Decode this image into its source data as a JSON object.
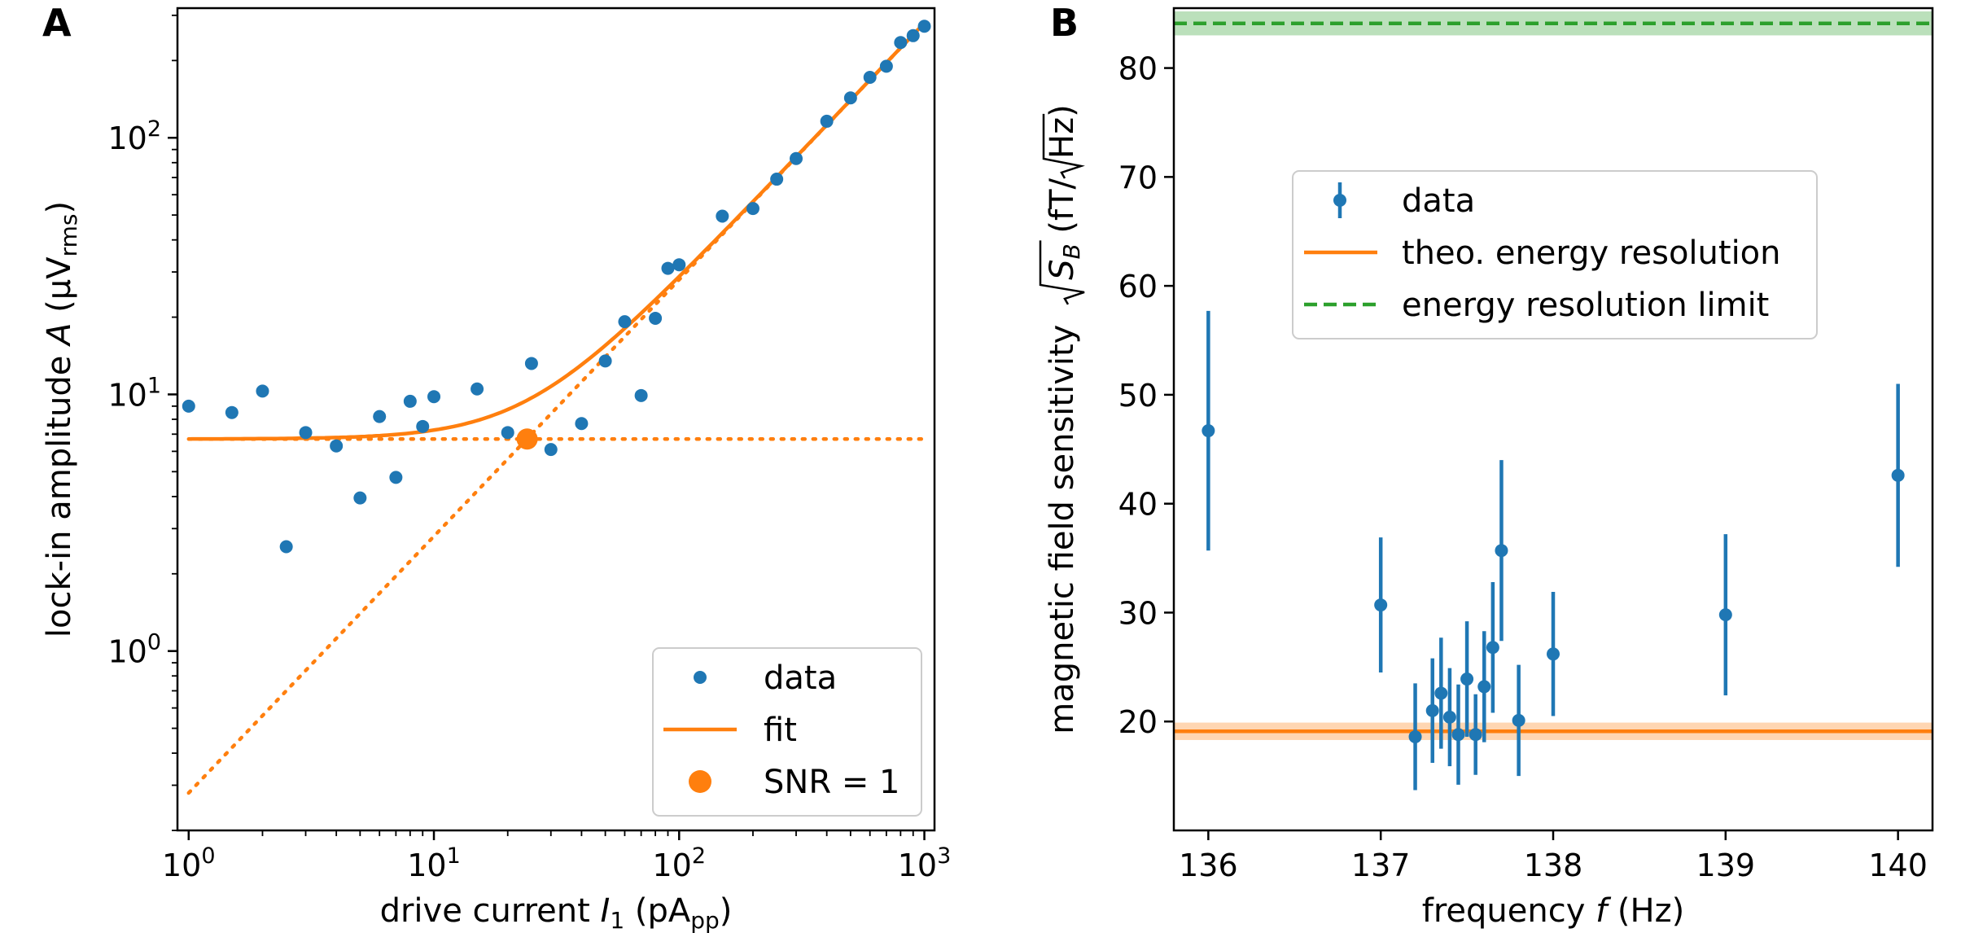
{
  "chart_data": [
    {
      "panel_label": "A",
      "type": "scatter",
      "xscale": "log",
      "yscale": "log",
      "xlim": [
        0.9,
        1100
      ],
      "ylim": [
        0.2,
        320
      ],
      "xlabel": {
        "main": "drive current ",
        "var": "I",
        "var_sub": "1",
        "unit_open": "  (pA",
        "unit_sub": "pp",
        "unit_close": ")"
      },
      "ylabel": {
        "main": "lock-in amplitude ",
        "var": "A",
        "unit_open": "  (μV",
        "unit_sub": "rms",
        "unit_close": ")"
      },
      "xticks": [
        {
          "value": 1,
          "base": "10",
          "exp": "0"
        },
        {
          "value": 10,
          "base": "10",
          "exp": "1"
        },
        {
          "value": 100,
          "base": "10",
          "exp": "2"
        },
        {
          "value": 1000,
          "base": "10",
          "exp": "3"
        }
      ],
      "yticks": [
        {
          "value": 1,
          "base": "10",
          "exp": "0"
        },
        {
          "value": 10,
          "base": "10",
          "exp": "1"
        },
        {
          "value": 100,
          "base": "10",
          "exp": "2"
        }
      ],
      "colors": {
        "data": "#1f77b4",
        "fit": "#ff7f0e"
      },
      "data_points": [
        [
          1,
          9.0
        ],
        [
          1.5,
          8.5
        ],
        [
          2,
          10.3
        ],
        [
          2.5,
          2.55
        ],
        [
          3,
          7.1
        ],
        [
          4,
          6.3
        ],
        [
          5,
          3.95
        ],
        [
          6,
          8.2
        ],
        [
          7,
          4.75
        ],
        [
          8,
          9.4
        ],
        [
          9,
          7.5
        ],
        [
          10,
          9.8
        ],
        [
          15,
          10.5
        ],
        [
          20,
          7.1
        ],
        [
          25,
          13.2
        ],
        [
          30,
          6.1
        ],
        [
          40,
          7.7
        ],
        [
          50,
          13.5
        ],
        [
          60,
          19.2
        ],
        [
          70,
          9.9
        ],
        [
          80,
          19.8
        ],
        [
          90,
          31.0
        ],
        [
          100,
          32.0
        ],
        [
          150,
          49.5
        ],
        [
          200,
          53.0
        ],
        [
          250,
          69.0
        ],
        [
          300,
          83.0
        ],
        [
          400,
          116.0
        ],
        [
          500,
          143.0
        ],
        [
          600,
          172.0
        ],
        [
          700,
          190.0
        ],
        [
          800,
          235.0
        ],
        [
          900,
          250.0
        ],
        [
          1000,
          272.0
        ]
      ],
      "fit": {
        "noise_floor": 6.7,
        "slope_coefficient": 0.28,
        "x_range": [
          1,
          1000
        ]
      },
      "snr_point": [
        24,
        6.7
      ],
      "legend": {
        "location": "lower right",
        "entries": [
          "data",
          "fit",
          "SNR = 1"
        ]
      }
    },
    {
      "panel_label": "B",
      "type": "scatter",
      "xlim": [
        135.8,
        140.2
      ],
      "ylim": [
        10,
        85.5
      ],
      "xlabel": {
        "main": "frequency ",
        "var": "f",
        "unit": "  (Hz)"
      },
      "ylabel": {
        "main": "magnetic field sensitivity ",
        "var": "S",
        "var_sub": "B",
        "unit_open": "  (fT/",
        "unit_root": "Hz",
        "unit_close": ")"
      },
      "xticks": [
        136,
        137,
        138,
        139,
        140
      ],
      "yticks": [
        20,
        30,
        40,
        50,
        60,
        70,
        80
      ],
      "colors": {
        "data": "#1f77b4",
        "theo": "#ff7f0e",
        "limit": "#2ca02c"
      },
      "data_points": [
        {
          "x": 136.0,
          "y": 46.7,
          "err": 11.0
        },
        {
          "x": 137.0,
          "y": 30.7,
          "err": 6.2
        },
        {
          "x": 137.2,
          "y": 18.6,
          "err": 4.9
        },
        {
          "x": 137.3,
          "y": 21.0,
          "err": 4.8
        },
        {
          "x": 137.35,
          "y": 22.6,
          "err": 5.1
        },
        {
          "x": 137.4,
          "y": 20.4,
          "err": 4.5
        },
        {
          "x": 137.45,
          "y": 18.8,
          "err": 4.6
        },
        {
          "x": 137.5,
          "y": 23.9,
          "err": 5.3
        },
        {
          "x": 137.55,
          "y": 18.8,
          "err": 3.7
        },
        {
          "x": 137.6,
          "y": 23.2,
          "err": 5.1
        },
        {
          "x": 137.65,
          "y": 26.8,
          "err": 6.0
        },
        {
          "x": 137.7,
          "y": 35.7,
          "err": 8.3
        },
        {
          "x": 137.8,
          "y": 20.1,
          "err": 5.1
        },
        {
          "x": 138.0,
          "y": 26.2,
          "err": 5.7
        },
        {
          "x": 139.0,
          "y": 29.8,
          "err": 7.4
        },
        {
          "x": 140.0,
          "y": 42.6,
          "err": 8.4
        }
      ],
      "theo_level": 19.1,
      "theo_band": [
        18.3,
        19.9
      ],
      "limit_level": 84.1,
      "limit_band": [
        83.0,
        85.2
      ],
      "legend": {
        "location": "upper center",
        "entries": [
          "data",
          "theo. energy resolution",
          "energy resolution limit"
        ]
      }
    }
  ]
}
